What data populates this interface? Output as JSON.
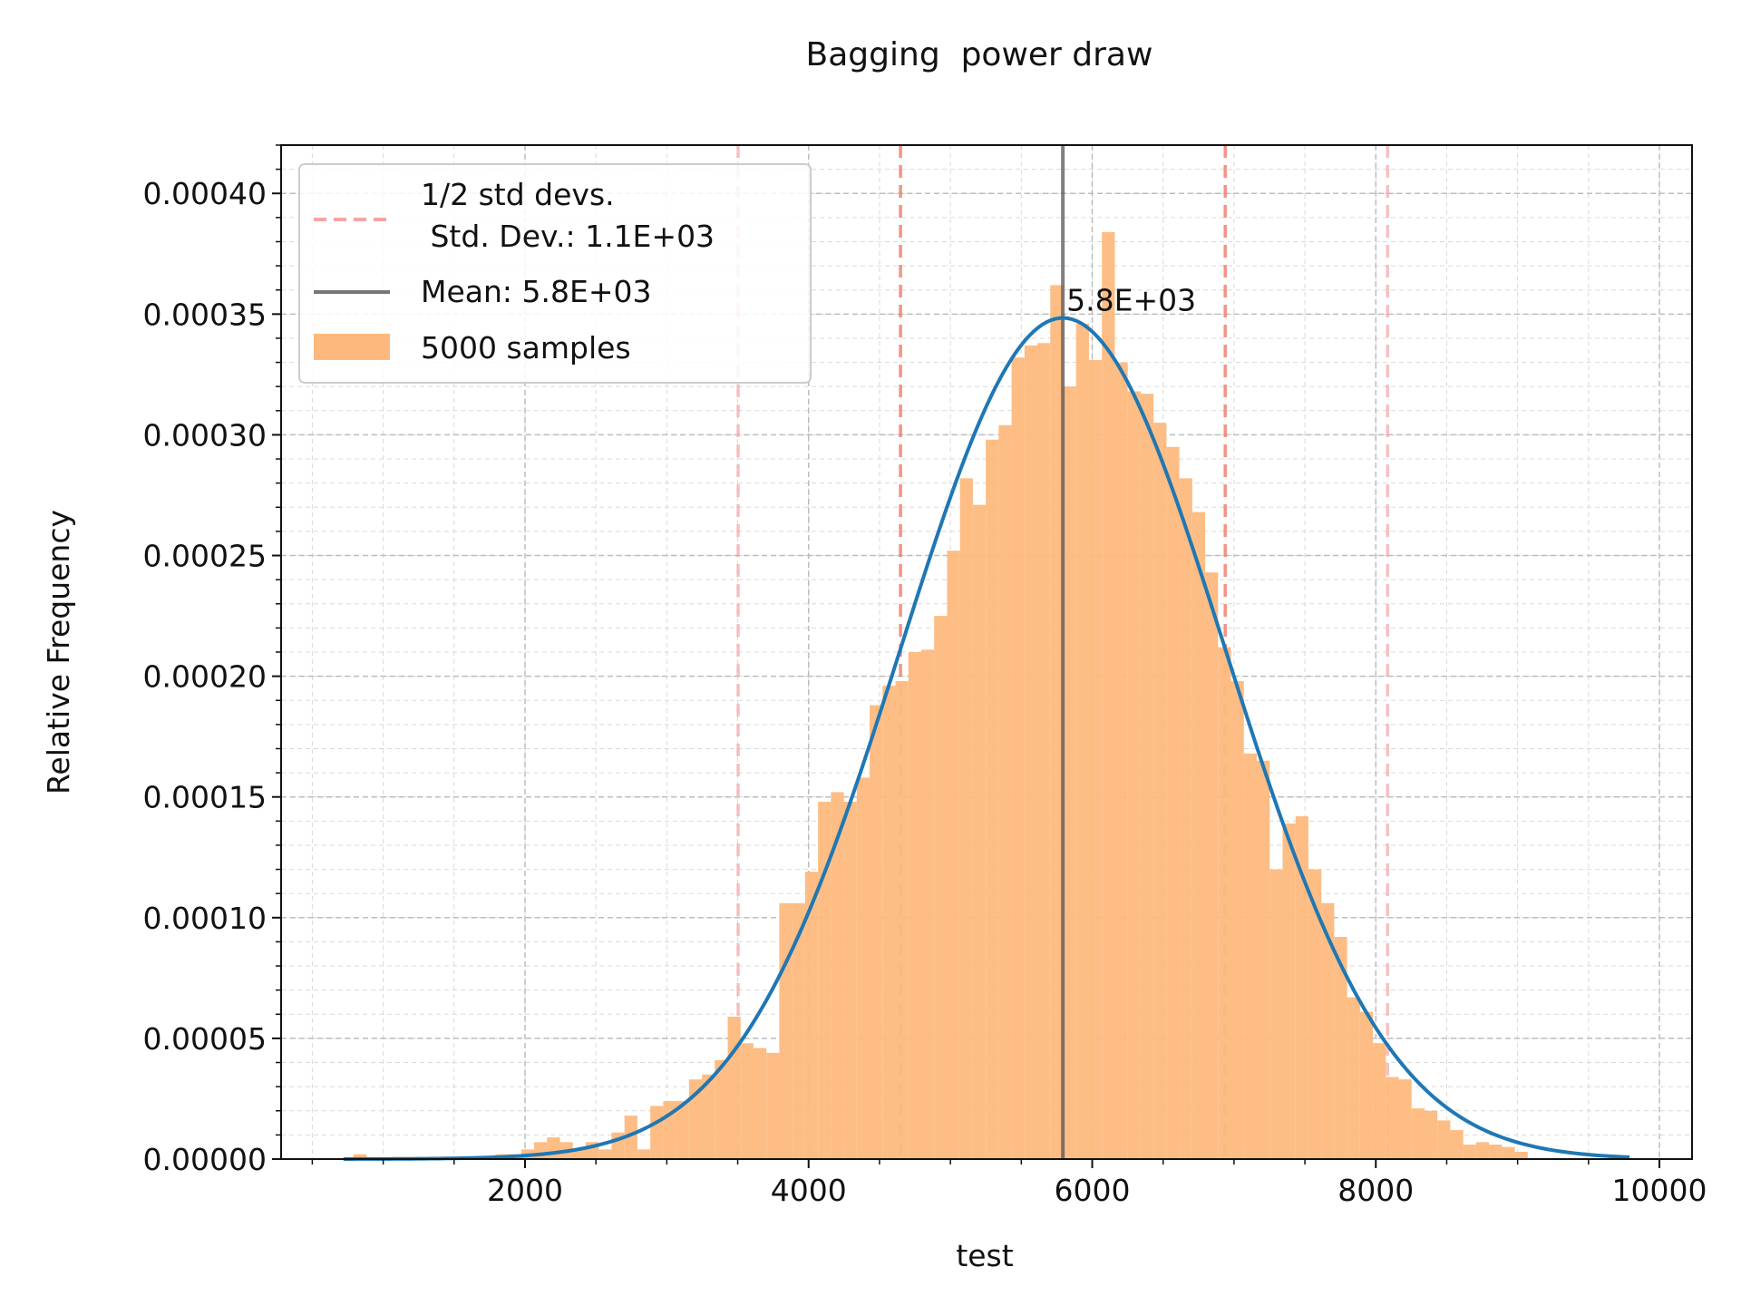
{
  "chart_data": {
    "type": "bar",
    "title": "Bagging  power draw",
    "xlabel": "test",
    "ylabel": "Relative Frequency",
    "xlim": [
      280,
      10230
    ],
    "ylim": [
      0,
      0.00042
    ],
    "x_ticks": [
      2000,
      4000,
      6000,
      8000,
      10000
    ],
    "x_tick_labels": [
      "2000",
      "4000",
      "6000",
      "8000",
      "10000"
    ],
    "y_ticks": [
      0,
      5e-05,
      0.0001,
      0.00015,
      0.0002,
      0.00025,
      0.0003,
      0.00035,
      0.0004
    ],
    "y_tick_labels": [
      "0.00000",
      "0.00005",
      "0.00010",
      "0.00015",
      "0.00020",
      "0.00025",
      "0.00030",
      "0.00035",
      "0.00040"
    ],
    "grid": true,
    "legend_position": "top-left",
    "legend": [
      {
        "label": "1/2 std devs.\n Std. Dev.: 1.1E+03",
        "label_line1": "1/2 std devs.",
        "label_line2": " Std. Dev.: 1.1E+03",
        "style": "dashed",
        "color": "#f4a6a6"
      },
      {
        "label": "Mean: 5.8E+03",
        "style": "solid",
        "color": "#777777"
      },
      {
        "label": "5000 samples",
        "style": "patch",
        "color": "#fdb97d"
      }
    ],
    "mean": 5793,
    "std": 1145,
    "mean_annotation": "5.8E+03",
    "std_lines": [
      3503,
      4648,
      6938,
      8083
    ],
    "histogram": {
      "name": "5000 samples",
      "color": "#fdb97d",
      "bin_width": 91,
      "bin_centers": [
        836,
        1837,
        1928,
        2019,
        2110,
        2201,
        2292,
        2383,
        2474,
        2565,
        2656,
        2747,
        2838,
        2929,
        3020,
        3111,
        3202,
        3293,
        3384,
        3475,
        3566,
        3657,
        3748,
        3839,
        3930,
        4021,
        4112,
        4203,
        4294,
        4385,
        4476,
        4567,
        4658,
        4749,
        4840,
        4931,
        5022,
        5113,
        5204,
        5295,
        5386,
        5477,
        5568,
        5659,
        5750,
        5841,
        5932,
        6023,
        6114,
        6205,
        6296,
        6387,
        6478,
        6569,
        6660,
        6751,
        6842,
        6933,
        7024,
        7115,
        7206,
        7297,
        7388,
        7479,
        7570,
        7661,
        7752,
        7843,
        7934,
        8025,
        8116,
        8207,
        8298,
        8389,
        8480,
        8571,
        8662,
        8753,
        8844,
        8935,
        9026
      ],
      "values": [
        2e-06,
        2e-06,
        2e-06,
        4e-06,
        7e-06,
        9e-06,
        7e-06,
        4e-06,
        7e-06,
        4e-06,
        1.1e-05,
        1.8e-05,
        4e-06,
        2.2e-05,
        2.4e-05,
        2.4e-05,
        3.3e-05,
        3.5e-05,
        4.1e-05,
        5.9e-05,
        4.8e-05,
        4.6e-05,
        4.4e-05,
        0.000106,
        0.000106,
        0.000119,
        0.000148,
        0.000152,
        0.000148,
        0.000158,
        0.000188,
        0.000196,
        0.000198,
        0.00021,
        0.000211,
        0.000225,
        0.000252,
        0.000282,
        0.000271,
        0.000298,
        0.000304,
        0.000332,
        0.000337,
        0.000338,
        0.000362,
        0.00032,
        0.000346,
        0.000331,
        0.000384,
        0.00033,
        0.000318,
        0.000317,
        0.000305,
        0.000295,
        0.000282,
        0.000268,
        0.000243,
        0.000212,
        0.000198,
        0.000168,
        0.000165,
        0.00012,
        0.000139,
        0.000142,
        0.00012,
        0.000106,
        9.2e-05,
        6.7e-05,
        6.1e-05,
        4.8e-05,
        3.4e-05,
        3.3e-05,
        2.1e-05,
        2e-05,
        1.6e-05,
        1.2e-05,
        6e-06,
        7e-06,
        6e-06,
        5e-06,
        3e-06
      ]
    },
    "fit_curve": {
      "type": "line",
      "distribution": "normal",
      "color": "#1f77b4",
      "x_range": [
        720,
        9790
      ],
      "mean": 5793,
      "std": 1145
    }
  }
}
